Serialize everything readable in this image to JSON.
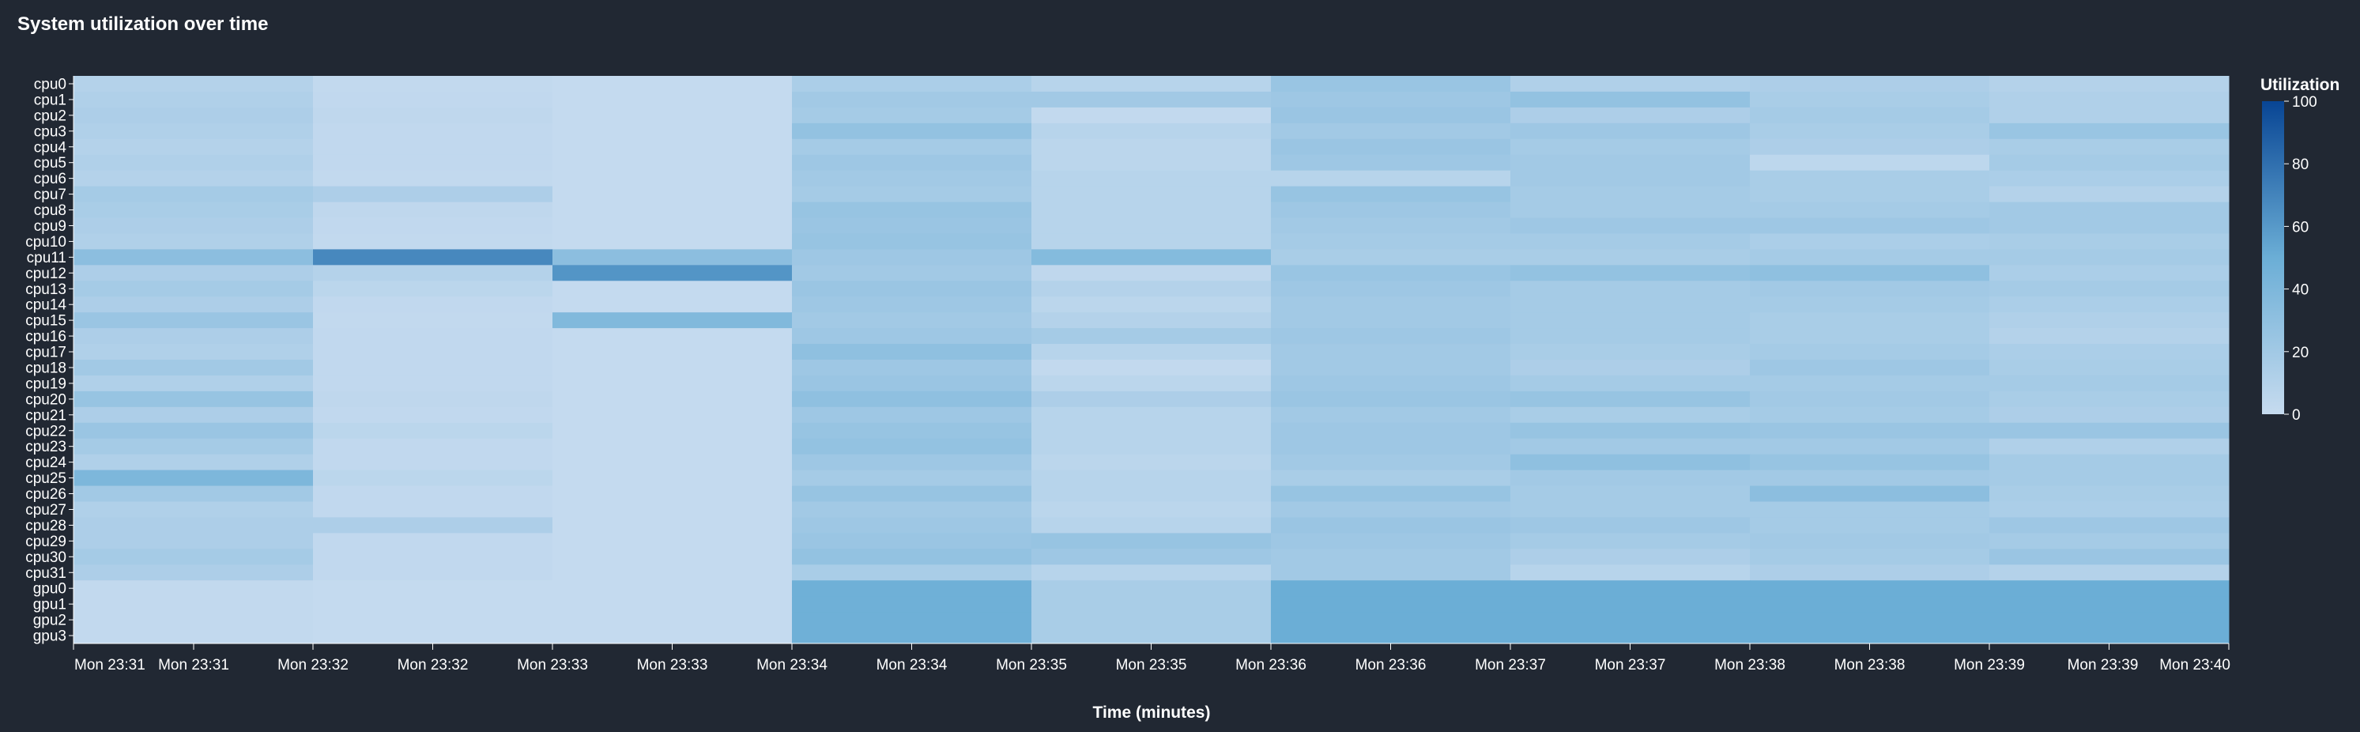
{
  "chart_data": {
    "type": "heatmap",
    "title": "System utilization over time",
    "xlabel": "Time (minutes)",
    "ylabel": "",
    "legend": {
      "title": "Utilization",
      "ticks": [
        0,
        20,
        40,
        60,
        80,
        100
      ],
      "placement": "right",
      "range": [
        0,
        100
      ]
    },
    "colors": {
      "background": "#212833",
      "scale_low": "#c6dbef",
      "scale_high": "#084594"
    },
    "x_ticks": [
      "Mon 23:31",
      "Mon 23:31",
      "Mon 23:32",
      "Mon 23:32",
      "Mon 23:33",
      "Mon 23:33",
      "Mon 23:34",
      "Mon 23:34",
      "Mon 23:35",
      "Mon 23:35",
      "Mon 23:36",
      "Mon 23:36",
      "Mon 23:37",
      "Mon 23:37",
      "Mon 23:38",
      "Mon 23:38",
      "Mon 23:39",
      "Mon 23:39",
      "Mon 23:40"
    ],
    "columns": [
      "Mon 23:31",
      "Mon 23:32",
      "Mon 23:33",
      "Mon 23:34",
      "Mon 23:35",
      "Mon 23:36",
      "Mon 23:37",
      "Mon 23:38",
      "Mon 23:39"
    ],
    "rows": [
      "cpu0",
      "cpu1",
      "cpu2",
      "cpu3",
      "cpu4",
      "cpu5",
      "cpu6",
      "cpu7",
      "cpu8",
      "cpu9",
      "cpu10",
      "cpu11",
      "cpu12",
      "cpu13",
      "cpu14",
      "cpu15",
      "cpu16",
      "cpu17",
      "cpu18",
      "cpu19",
      "cpu20",
      "cpu21",
      "cpu22",
      "cpu23",
      "cpu24",
      "cpu25",
      "cpu26",
      "cpu27",
      "cpu28",
      "cpu29",
      "cpu30",
      "cpu31",
      "gpu0",
      "gpu1",
      "gpu2",
      "gpu3"
    ],
    "values": [
      [
        10,
        2,
        1,
        15,
        8,
        25,
        12,
        14,
        10
      ],
      [
        12,
        3,
        1,
        20,
        20,
        22,
        28,
        16,
        12
      ],
      [
        14,
        4,
        1,
        18,
        2,
        24,
        14,
        18,
        12
      ],
      [
        12,
        3,
        1,
        28,
        8,
        20,
        22,
        16,
        25
      ],
      [
        10,
        3,
        1,
        18,
        6,
        24,
        18,
        14,
        16
      ],
      [
        12,
        3,
        1,
        22,
        6,
        22,
        20,
        5,
        18
      ],
      [
        10,
        2,
        1,
        20,
        8,
        8,
        20,
        16,
        15
      ],
      [
        18,
        14,
        1,
        18,
        8,
        26,
        18,
        16,
        10
      ],
      [
        16,
        4,
        1,
        26,
        8,
        22,
        18,
        18,
        20
      ],
      [
        14,
        3,
        1,
        24,
        8,
        20,
        22,
        22,
        20
      ],
      [
        12,
        2,
        1,
        26,
        8,
        18,
        18,
        15,
        16
      ],
      [
        32,
        68,
        32,
        22,
        36,
        16,
        16,
        18,
        18
      ],
      [
        14,
        10,
        62,
        20,
        4,
        25,
        28,
        30,
        15
      ],
      [
        18,
        6,
        1,
        24,
        10,
        22,
        18,
        20,
        18
      ],
      [
        14,
        3,
        1,
        22,
        6,
        20,
        18,
        18,
        15
      ],
      [
        24,
        2,
        38,
        20,
        10,
        20,
        18,
        16,
        12
      ],
      [
        14,
        3,
        1,
        22,
        18,
        22,
        18,
        16,
        10
      ],
      [
        12,
        3,
        1,
        30,
        8,
        20,
        16,
        18,
        15
      ],
      [
        20,
        3,
        1,
        22,
        2,
        20,
        14,
        22,
        16
      ],
      [
        12,
        3,
        1,
        24,
        6,
        22,
        18,
        18,
        18
      ],
      [
        26,
        4,
        1,
        30,
        14,
        24,
        26,
        20,
        16
      ],
      [
        14,
        3,
        1,
        22,
        8,
        20,
        16,
        18,
        14
      ],
      [
        24,
        6,
        1,
        26,
        8,
        22,
        26,
        24,
        24
      ],
      [
        18,
        3,
        1,
        28,
        8,
        22,
        20,
        20,
        12
      ],
      [
        12,
        3,
        1,
        22,
        6,
        20,
        30,
        26,
        18
      ],
      [
        40,
        6,
        1,
        18,
        8,
        16,
        20,
        20,
        18
      ],
      [
        20,
        3,
        1,
        26,
        8,
        26,
        18,
        32,
        16
      ],
      [
        12,
        3,
        1,
        20,
        6,
        20,
        18,
        18,
        15
      ],
      [
        14,
        14,
        1,
        22,
        8,
        24,
        22,
        18,
        22
      ],
      [
        14,
        3,
        1,
        24,
        26,
        22,
        18,
        20,
        18
      ],
      [
        18,
        3,
        1,
        28,
        22,
        20,
        14,
        18,
        24
      ],
      [
        14,
        3,
        1,
        16,
        8,
        20,
        8,
        14,
        10
      ],
      [
        2,
        1,
        1,
        48,
        16,
        50,
        50,
        50,
        50
      ],
      [
        2,
        1,
        1,
        48,
        16,
        50,
        50,
        50,
        50
      ],
      [
        2,
        1,
        1,
        48,
        16,
        50,
        50,
        50,
        50
      ],
      [
        2,
        1,
        1,
        48,
        16,
        50,
        50,
        50,
        50
      ]
    ]
  }
}
